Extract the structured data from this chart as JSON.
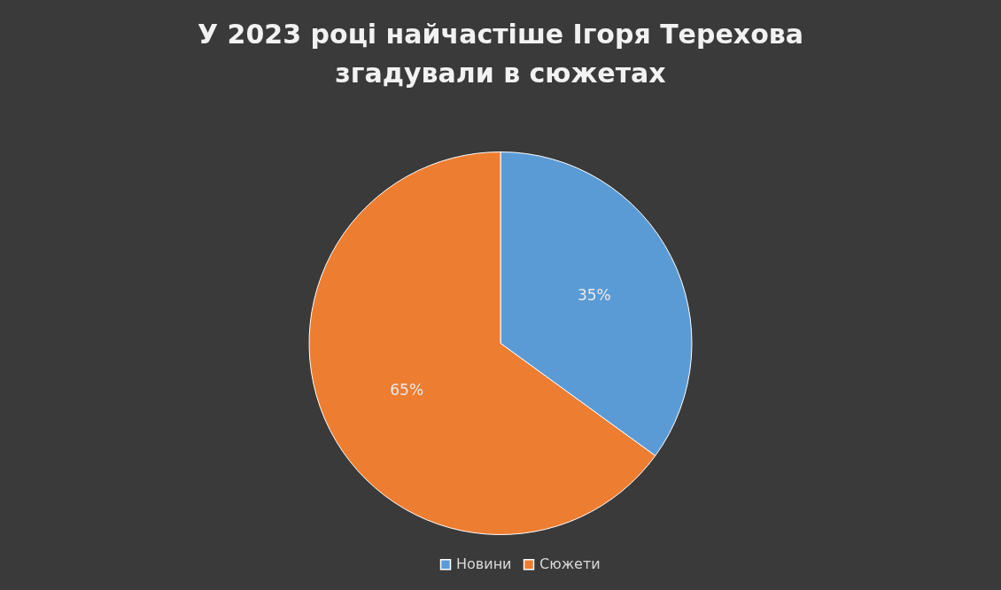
{
  "chart_data": {
    "type": "pie",
    "title": "У 2023 році найчастіше Ігоря Терехова згадували в сюжетах",
    "categories": [
      "Новини",
      "Сюжети"
    ],
    "values": [
      35,
      65
    ],
    "colors": [
      "#5b9bd5",
      "#ed7d31"
    ],
    "value_labels": [
      "35%",
      "65%"
    ],
    "legend": "bottom"
  }
}
